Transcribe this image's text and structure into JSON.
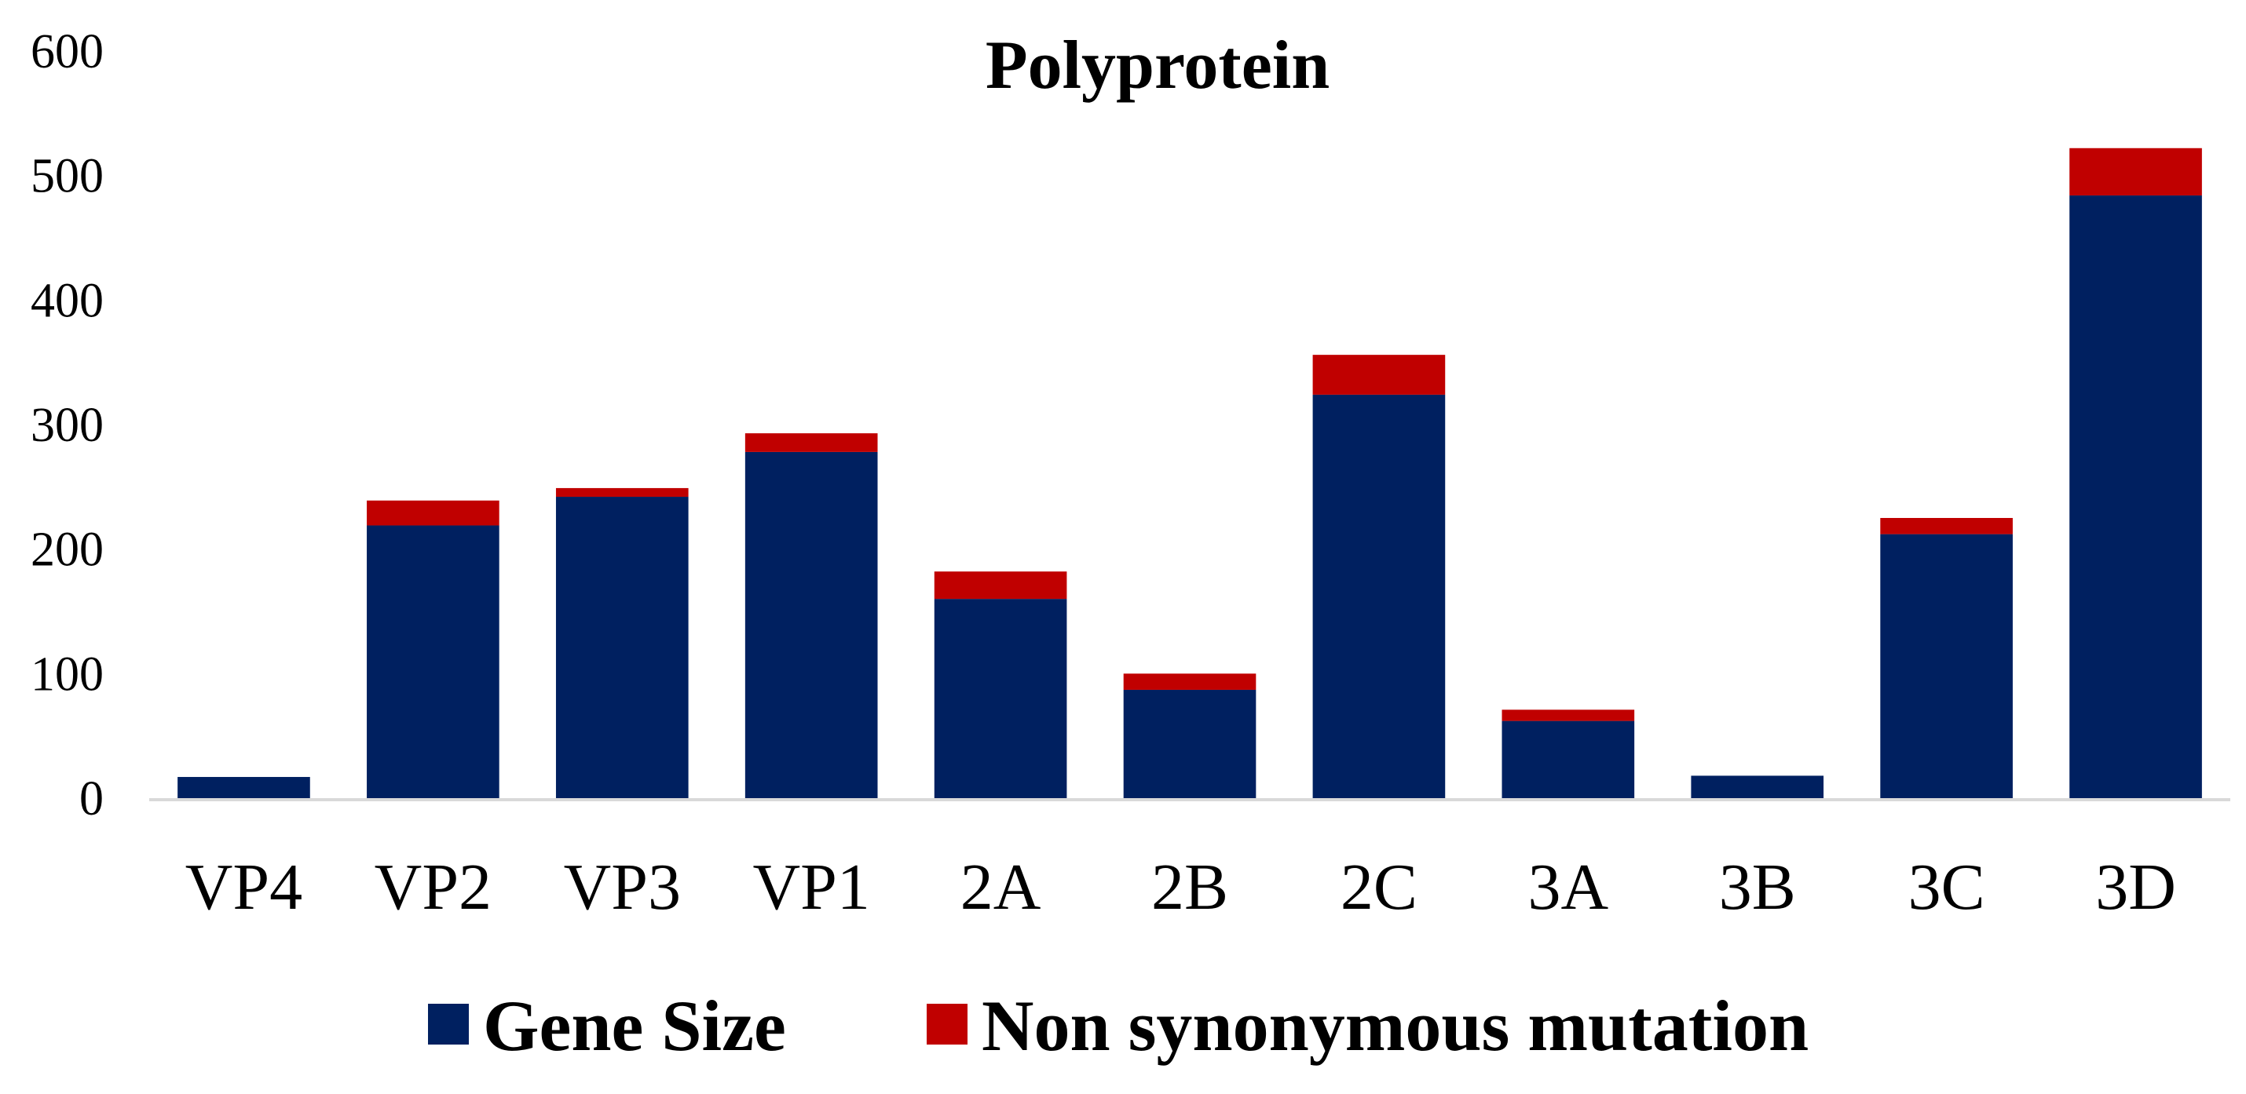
{
  "chart_data": {
    "type": "bar",
    "stacked": true,
    "title": "Polyprotein",
    "xlabel": "",
    "ylabel": "",
    "categories": [
      "VP4",
      "VP2",
      "VP3",
      "VP1",
      "2A",
      "2B",
      "2C",
      "3A",
      "3B",
      "3C",
      "3D"
    ],
    "series": [
      {
        "name": "Gene Size",
        "color": "#002060",
        "values": [
          17,
          219,
          242,
          278,
          160,
          87,
          324,
          62,
          18,
          212,
          484
        ]
      },
      {
        "name": "Non synonymous mutation",
        "color": "#c00000",
        "values": [
          0,
          20,
          7,
          15,
          22,
          13,
          32,
          9,
          0,
          13,
          38
        ]
      }
    ],
    "ylim": [
      0,
      600
    ],
    "yticks": [
      0,
      100,
      200,
      300,
      400,
      500,
      600
    ],
    "grid": false,
    "legend_position": "bottom"
  }
}
